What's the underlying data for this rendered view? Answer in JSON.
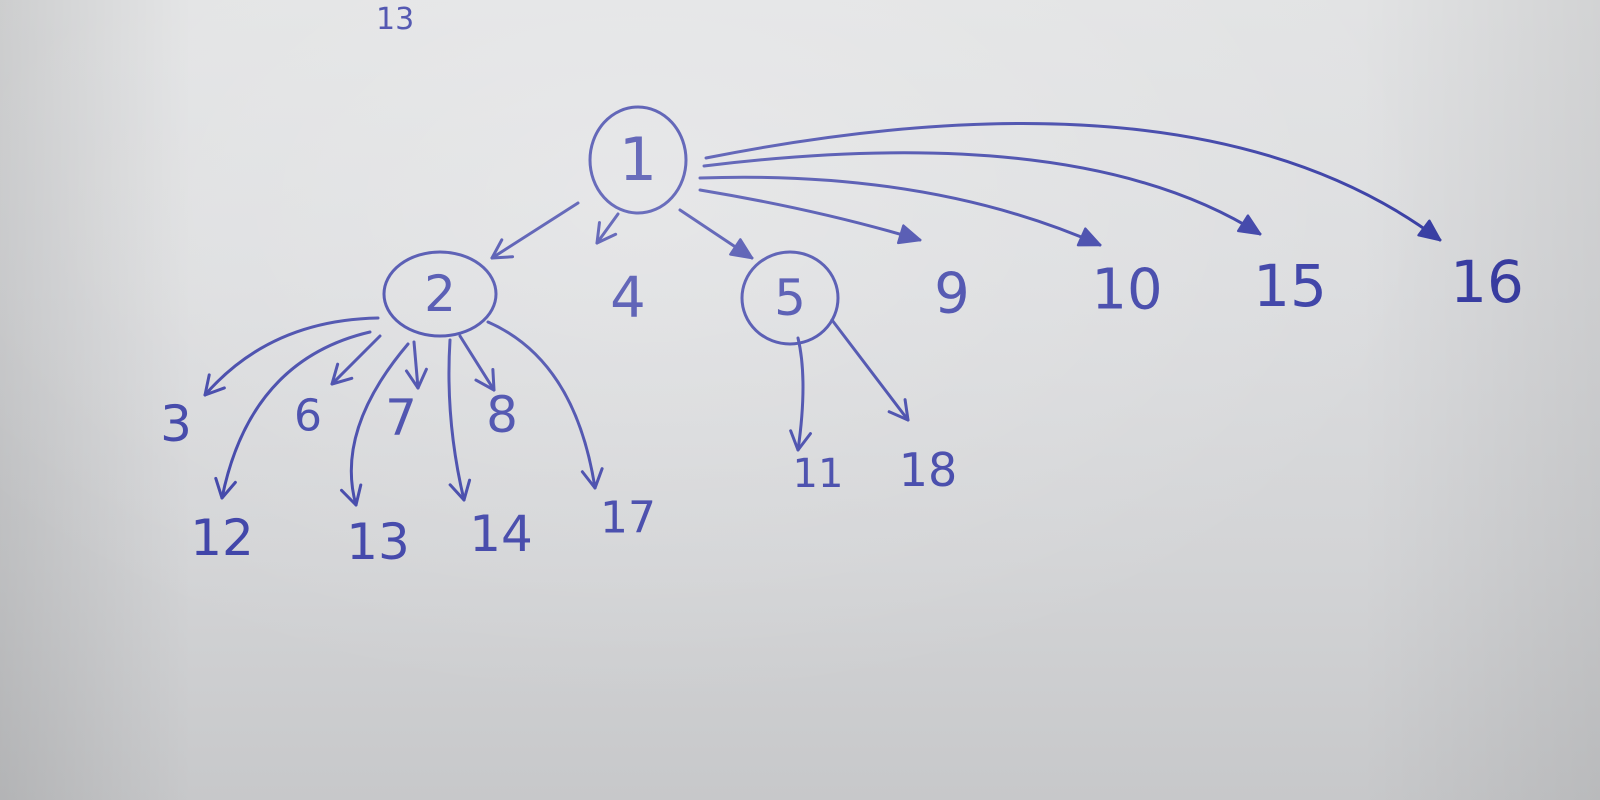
{
  "stray_mark": "13",
  "ink_color": "#3a3fa6",
  "nodes": [
    {
      "id": "1",
      "circled": true
    },
    {
      "id": "2",
      "circled": true
    },
    {
      "id": "4",
      "circled": false
    },
    {
      "id": "5",
      "circled": true
    },
    {
      "id": "9",
      "circled": false
    },
    {
      "id": "10",
      "circled": false
    },
    {
      "id": "15",
      "circled": false
    },
    {
      "id": "16",
      "circled": false
    },
    {
      "id": "3",
      "circled": false
    },
    {
      "id": "6",
      "circled": false
    },
    {
      "id": "7",
      "circled": false
    },
    {
      "id": "8",
      "circled": false
    },
    {
      "id": "12",
      "circled": false
    },
    {
      "id": "13",
      "circled": false
    },
    {
      "id": "14",
      "circled": false
    },
    {
      "id": "17",
      "circled": false
    },
    {
      "id": "11",
      "circled": false
    },
    {
      "id": "18",
      "circled": false
    }
  ],
  "edges": [
    {
      "from": "1",
      "to": "2"
    },
    {
      "from": "1",
      "to": "4"
    },
    {
      "from": "1",
      "to": "5"
    },
    {
      "from": "1",
      "to": "9"
    },
    {
      "from": "1",
      "to": "10"
    },
    {
      "from": "1",
      "to": "15"
    },
    {
      "from": "1",
      "to": "16"
    },
    {
      "from": "2",
      "to": "3"
    },
    {
      "from": "2",
      "to": "6"
    },
    {
      "from": "2",
      "to": "7"
    },
    {
      "from": "2",
      "to": "8"
    },
    {
      "from": "2",
      "to": "12"
    },
    {
      "from": "2",
      "to": "13"
    },
    {
      "from": "2",
      "to": "14"
    },
    {
      "from": "2",
      "to": "17"
    },
    {
      "from": "5",
      "to": "11"
    },
    {
      "from": "5",
      "to": "18"
    }
  ]
}
